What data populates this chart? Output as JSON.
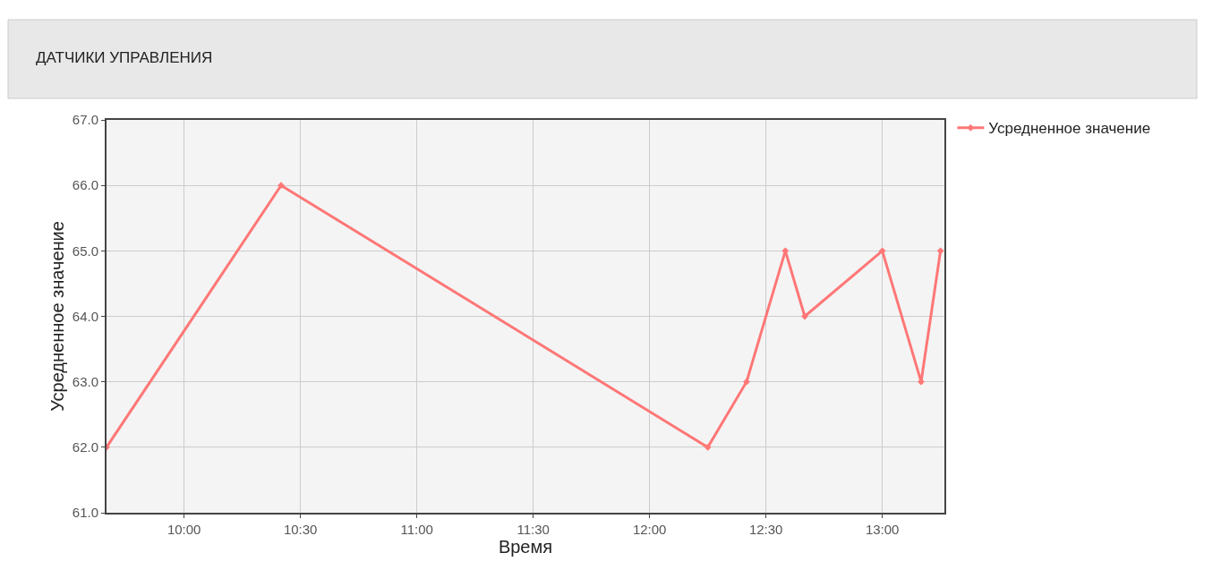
{
  "chart_data": {
    "type": "line",
    "title": "ДАТЧИКИ УПРАВЛЕНИЯ",
    "xlabel": "Время",
    "ylabel": "Усредненное значение",
    "x": [
      9.6667,
      10.4167,
      12.25,
      12.4167,
      12.5833,
      12.6667,
      13.0,
      13.1667,
      13.25
    ],
    "series": [
      {
        "name": "Усредненное значение",
        "color": "#ff7777",
        "values": [
          62,
          66,
          62,
          63,
          65,
          64,
          65,
          63,
          65
        ]
      }
    ],
    "xlim": [
      9.6667,
      13.2667
    ],
    "xticks": [
      {
        "value": 10,
        "label": "10:00"
      },
      {
        "value": 10.5,
        "label": "10:30"
      },
      {
        "value": 11,
        "label": "11:00"
      },
      {
        "value": 11.5,
        "label": "11:30"
      },
      {
        "value": 12,
        "label": "12:00"
      },
      {
        "value": 12.5,
        "label": "12:30"
      },
      {
        "value": 13,
        "label": "13:00"
      }
    ],
    "ylim": [
      61,
      67
    ],
    "yticks": [
      {
        "value": 61,
        "label": "61.0"
      },
      {
        "value": 62,
        "label": "62.0"
      },
      {
        "value": 63,
        "label": "63.0"
      },
      {
        "value": 64,
        "label": "64.0"
      },
      {
        "value": 65,
        "label": "65.0"
      },
      {
        "value": 66,
        "label": "66.0"
      },
      {
        "value": 67,
        "label": "67.0"
      }
    ],
    "grid": true,
    "legend": "top right",
    "marker": "diamond",
    "line_style": "solid"
  }
}
